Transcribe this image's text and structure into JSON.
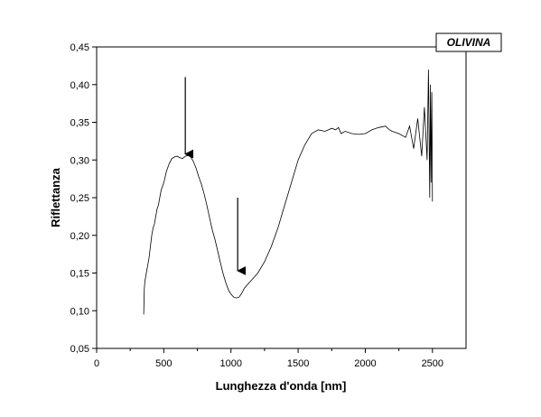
{
  "chart_data": {
    "type": "line",
    "title": "",
    "legend_label": "OLIVINA",
    "legend_position": "top-right",
    "xlabel": "Lunghezza d'onda [nm]",
    "ylabel": "Riflettanza",
    "xlim": [
      0,
      2750
    ],
    "ylim": [
      0.05,
      0.45
    ],
    "xticks": [
      0,
      500,
      1000,
      1500,
      2000,
      2500
    ],
    "yticks": [
      0.05,
      0.1,
      0.15,
      0.2,
      0.25,
      0.3,
      0.35,
      0.4,
      0.45
    ],
    "xtick_labels": [
      "0",
      "500",
      "1000",
      "1500",
      "2000",
      "2500"
    ],
    "ytick_labels": [
      "0,05",
      "0,10",
      "0,15",
      "0,20",
      "0,25",
      "0,30",
      "0,35",
      "0,40",
      "0,45"
    ],
    "grid": false,
    "series": [
      {
        "x": [
          350,
          355,
          360,
          365,
          370,
          380,
          390,
          400,
          410,
          420,
          430,
          440,
          450,
          460,
          470,
          480,
          500,
          520,
          540,
          560,
          580,
          600,
          620,
          640,
          660,
          680,
          700,
          720,
          740,
          760,
          780,
          800,
          820,
          840,
          860,
          880,
          900,
          920,
          940,
          960,
          980,
          1000,
          1020,
          1040,
          1060,
          1080,
          1100,
          1150,
          1200,
          1250,
          1300,
          1350,
          1400,
          1450,
          1500,
          1550,
          1600,
          1650,
          1700,
          1750,
          1780,
          1800,
          1820,
          1850,
          1900,
          1950,
          2000,
          2050,
          2100,
          2150,
          2180,
          2200,
          2250,
          2300,
          2330,
          2360,
          2390,
          2420,
          2440,
          2460,
          2470,
          2480,
          2485,
          2490,
          2495,
          2500
        ],
        "y": [
          0.095,
          0.13,
          0.14,
          0.145,
          0.15,
          0.16,
          0.17,
          0.185,
          0.2,
          0.21,
          0.215,
          0.225,
          0.235,
          0.24,
          0.25,
          0.26,
          0.27,
          0.285,
          0.295,
          0.302,
          0.304,
          0.305,
          0.303,
          0.302,
          0.305,
          0.306,
          0.304,
          0.298,
          0.289,
          0.278,
          0.268,
          0.255,
          0.24,
          0.224,
          0.208,
          0.195,
          0.18,
          0.165,
          0.15,
          0.138,
          0.128,
          0.122,
          0.118,
          0.117,
          0.118,
          0.123,
          0.13,
          0.14,
          0.15,
          0.165,
          0.185,
          0.21,
          0.24,
          0.27,
          0.3,
          0.32,
          0.335,
          0.34,
          0.338,
          0.342,
          0.34,
          0.343,
          0.335,
          0.338,
          0.335,
          0.334,
          0.335,
          0.34,
          0.343,
          0.345,
          0.34,
          0.338,
          0.335,
          0.33,
          0.345,
          0.315,
          0.355,
          0.305,
          0.37,
          0.3,
          0.42,
          0.25,
          0.4,
          0.27,
          0.39,
          0.245
        ]
      }
    ],
    "annotations": [
      {
        "type": "arrow",
        "x": 660,
        "y_from": 0.41,
        "y_to": 0.308
      },
      {
        "type": "arrow",
        "x": 1050,
        "y_from": 0.25,
        "y_to": 0.153
      }
    ]
  }
}
